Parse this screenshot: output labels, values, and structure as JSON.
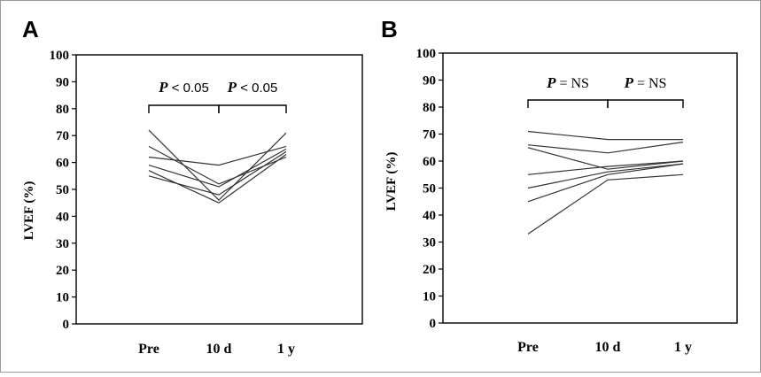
{
  "chart_data": [
    {
      "panel_label": "A",
      "type": "line",
      "categories": [
        "Pre",
        "10 d",
        "1 y"
      ],
      "ylabel": "LVEF (%)",
      "ylim": [
        0,
        100
      ],
      "yticks": [
        0,
        10,
        20,
        30,
        40,
        50,
        60,
        70,
        80,
        90,
        100
      ],
      "grid": false,
      "series": [
        {
          "values": [
            72,
            46,
            71
          ]
        },
        {
          "values": [
            66,
            52,
            62
          ]
        },
        {
          "values": [
            62,
            59,
            66
          ]
        },
        {
          "values": [
            59,
            51,
            65
          ]
        },
        {
          "values": [
            57,
            45,
            63
          ]
        },
        {
          "values": [
            55,
            48,
            64
          ]
        }
      ],
      "annotations": [
        {
          "from": "Pre",
          "to": "10 d",
          "p": "P",
          "text": "< 0.05"
        },
        {
          "from": "10 d",
          "to": "1 y",
          "p": "P",
          "text": "< 0.05"
        }
      ]
    },
    {
      "panel_label": "B",
      "type": "line",
      "categories": [
        "Pre",
        "10 d",
        "1 y"
      ],
      "ylabel": "LVEF (%)",
      "ylim": [
        0,
        100
      ],
      "yticks": [
        0,
        10,
        20,
        30,
        40,
        50,
        60,
        70,
        80,
        90,
        100
      ],
      "grid": false,
      "series": [
        {
          "values": [
            71,
            68,
            68
          ]
        },
        {
          "values": [
            66,
            63,
            67
          ]
        },
        {
          "values": [
            65,
            57,
            60
          ]
        },
        {
          "values": [
            55,
            58,
            60
          ]
        },
        {
          "values": [
            50,
            56,
            59
          ]
        },
        {
          "values": [
            45,
            55,
            59
          ]
        },
        {
          "values": [
            33,
            53,
            55
          ]
        }
      ],
      "annotations": [
        {
          "from": "Pre",
          "to": "10 d",
          "p": "P",
          "text": "= NS"
        },
        {
          "from": "10 d",
          "to": "1 y",
          "p": "P",
          "text": "= NS"
        }
      ]
    }
  ]
}
